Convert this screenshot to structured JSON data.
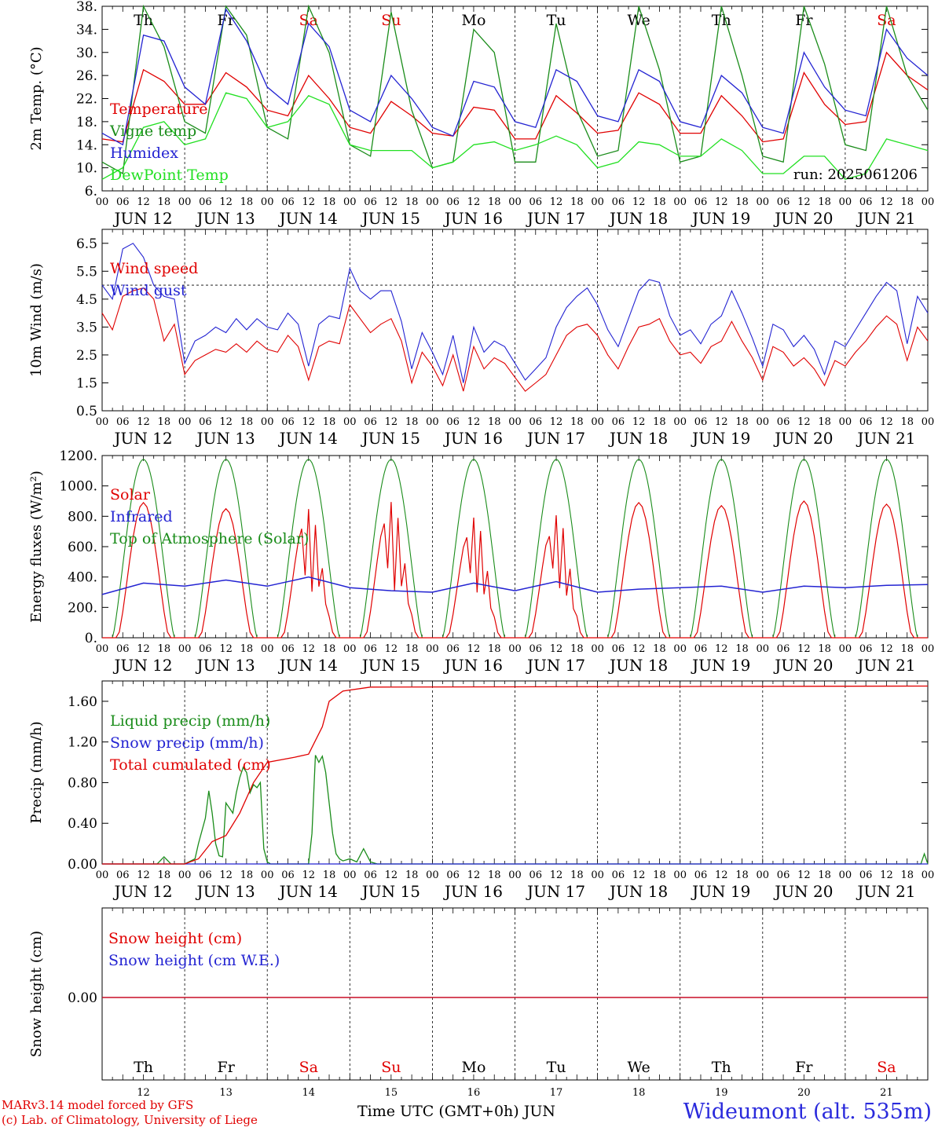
{
  "chart_data": [
    {
      "id": "temp",
      "type": "line",
      "ylabel": "2m Temp. (°C)",
      "ylim": [
        6,
        38
      ],
      "yticks": [
        6,
        10,
        14,
        18,
        22,
        26,
        30,
        34,
        38
      ],
      "ytick_labels": [
        "6.",
        "10.",
        "14.",
        "18.",
        "22.",
        "26.",
        "30.",
        "34.",
        "38."
      ],
      "day_labels_top": [
        "Th",
        "Fr",
        "Sa",
        "Su",
        "Mo",
        "Tu",
        "We",
        "Th",
        "Fr",
        "Sa"
      ],
      "annotation": "run: 2025061206",
      "series": [
        {
          "name": "Temperature",
          "color": "#e00000",
          "x": [
            0,
            6,
            12,
            18,
            24,
            30,
            36,
            42,
            48,
            54,
            60,
            66,
            72,
            78,
            84,
            90,
            96,
            102,
            108,
            114,
            120,
            126,
            132,
            138,
            144,
            150,
            156,
            162,
            168,
            174,
            180,
            186,
            192,
            198,
            204,
            210,
            216,
            222,
            228,
            234,
            240
          ],
          "y": [
            15,
            14.5,
            27,
            25,
            21,
            21,
            26.5,
            24,
            20,
            19,
            26,
            22,
            17,
            16,
            21.5,
            19,
            16,
            15.5,
            20.5,
            20,
            15,
            15,
            22.5,
            19.5,
            16,
            16.5,
            23,
            21,
            16,
            16,
            22.5,
            19,
            14.5,
            15,
            26.5,
            21,
            17.5,
            18,
            30,
            26,
            23.5
          ]
        },
        {
          "name": "Vigne temp",
          "color": "#1a8c1a",
          "x": [
            0,
            6,
            12,
            18,
            24,
            30,
            36,
            42,
            48,
            54,
            60,
            66,
            72,
            78,
            84,
            90,
            96,
            102,
            108,
            114,
            120,
            126,
            132,
            138,
            144,
            150,
            156,
            162,
            168,
            174,
            180,
            186,
            192,
            198,
            204,
            210,
            216,
            222,
            228,
            234,
            240
          ],
          "y": [
            11,
            9,
            38,
            31,
            18,
            16,
            38,
            33,
            17,
            15,
            38,
            30,
            14,
            12,
            37,
            20,
            10,
            11,
            34,
            30,
            11,
            11,
            35,
            20,
            12,
            13,
            38,
            27,
            11,
            12,
            38,
            26,
            12,
            11,
            38,
            28,
            14,
            13,
            38,
            26,
            20
          ]
        },
        {
          "name": "Humidex",
          "color": "#2323d2",
          "x": [
            0,
            6,
            12,
            18,
            24,
            30,
            36,
            42,
            48,
            54,
            60,
            66,
            72,
            78,
            84,
            90,
            96,
            102,
            108,
            114,
            120,
            126,
            132,
            138,
            144,
            150,
            156,
            162,
            168,
            174,
            180,
            186,
            192,
            198,
            204,
            210,
            216,
            222,
            228,
            234,
            240
          ],
          "y": [
            16,
            14,
            33,
            32,
            24,
            21,
            37.5,
            32,
            24,
            21,
            35,
            31,
            20,
            18,
            26,
            22,
            17,
            15.5,
            25,
            24,
            18,
            17,
            27,
            25,
            19,
            18,
            27,
            25,
            18,
            17,
            26,
            23,
            17,
            16,
            30,
            24,
            20,
            19,
            34,
            29,
            26
          ]
        },
        {
          "name": "DewPoint Temp",
          "color": "#22e022",
          "x": [
            0,
            6,
            12,
            18,
            24,
            30,
            36,
            42,
            48,
            54,
            60,
            66,
            72,
            78,
            84,
            90,
            96,
            102,
            108,
            114,
            120,
            126,
            132,
            138,
            144,
            150,
            156,
            162,
            168,
            174,
            180,
            186,
            192,
            198,
            204,
            210,
            216,
            222,
            228,
            234,
            240
          ],
          "y": [
            8,
            10,
            17,
            18,
            14,
            15,
            23,
            22,
            17,
            18,
            22.5,
            21,
            14,
            13,
            13,
            13,
            10,
            11,
            14,
            14.5,
            13,
            14,
            15.5,
            14,
            10,
            11,
            14.5,
            14,
            12,
            12,
            15,
            13,
            9,
            9,
            12,
            12,
            8,
            9,
            15,
            14,
            13
          ]
        }
      ]
    },
    {
      "id": "wind",
      "type": "line",
      "ylabel": "10m Wind (m/s)",
      "ylim": [
        0.5,
        7
      ],
      "yticks": [
        0.5,
        1.5,
        2.5,
        3.5,
        4.5,
        5.5,
        6.5
      ],
      "ytick_labels": [
        "0.5",
        "1.5",
        "2.5",
        "3.5",
        "4.5",
        "5.5",
        "6.5"
      ],
      "reference_line": 5.0,
      "series": [
        {
          "name": "Wind speed",
          "color": "#e00000",
          "x": [
            0,
            3,
            6,
            9,
            12,
            15,
            18,
            21,
            24,
            27,
            30,
            33,
            36,
            39,
            42,
            45,
            48,
            51,
            54,
            57,
            60,
            63,
            66,
            69,
            72,
            75,
            78,
            81,
            84,
            87,
            90,
            93,
            96,
            99,
            102,
            105,
            108,
            111,
            114,
            117,
            120,
            123,
            126,
            129,
            132,
            135,
            138,
            141,
            144,
            147,
            150,
            153,
            156,
            159,
            162,
            165,
            168,
            171,
            174,
            177,
            180,
            183,
            186,
            189,
            192,
            195,
            198,
            201,
            204,
            207,
            210,
            213,
            216,
            219,
            222,
            225,
            228,
            231,
            234,
            237,
            240
          ],
          "y": [
            4,
            3.4,
            4.6,
            4.8,
            4.9,
            4.5,
            3,
            3.6,
            1.8,
            2.3,
            2.5,
            2.7,
            2.6,
            2.9,
            2.6,
            3,
            2.7,
            2.6,
            3.2,
            2.8,
            1.6,
            2.8,
            3,
            2.9,
            4.3,
            3.8,
            3.3,
            3.6,
            3.8,
            3,
            1.5,
            2.6,
            2.1,
            1.4,
            2.5,
            1.2,
            2.8,
            2,
            2.4,
            2.2,
            1.7,
            1.2,
            1.5,
            1.8,
            2.5,
            3.2,
            3.5,
            3.6,
            3.2,
            2.5,
            2,
            2.8,
            3.5,
            3.6,
            3.8,
            3,
            2.5,
            2.6,
            2.2,
            2.8,
            3,
            3.7,
            3,
            2.4,
            1.6,
            2.8,
            2.6,
            2.1,
            2.4,
            2,
            1.4,
            2.3,
            2.1,
            2.6,
            3,
            3.5,
            3.9,
            3.6,
            2.3,
            3.5,
            3
          ]
        },
        {
          "name": "Wind gust",
          "color": "#2323d2",
          "x": [
            0,
            3,
            6,
            9,
            12,
            15,
            18,
            21,
            24,
            27,
            30,
            33,
            36,
            39,
            42,
            45,
            48,
            51,
            54,
            57,
            60,
            63,
            66,
            69,
            72,
            75,
            78,
            81,
            84,
            87,
            90,
            93,
            96,
            99,
            102,
            105,
            108,
            111,
            114,
            117,
            120,
            123,
            126,
            129,
            132,
            135,
            138,
            141,
            144,
            147,
            150,
            153,
            156,
            159,
            162,
            165,
            168,
            171,
            174,
            177,
            180,
            183,
            186,
            189,
            192,
            195,
            198,
            201,
            204,
            207,
            210,
            213,
            216,
            219,
            222,
            225,
            228,
            231,
            234,
            237,
            240
          ],
          "y": [
            5,
            4.5,
            6.3,
            6.5,
            6,
            5,
            4.6,
            4.5,
            2.2,
            3,
            3.2,
            3.5,
            3.3,
            3.8,
            3.4,
            3.8,
            3.5,
            3.4,
            4,
            3.6,
            2.1,
            3.6,
            3.9,
            3.8,
            5.6,
            4.8,
            4.5,
            4.8,
            4.8,
            3.7,
            2,
            3.3,
            2.6,
            1.8,
            3.2,
            1.5,
            3.5,
            2.6,
            3,
            2.8,
            2.2,
            1.6,
            2,
            2.4,
            3.5,
            4.2,
            4.6,
            4.9,
            4.3,
            3.4,
            2.8,
            3.8,
            4.8,
            5.2,
            5.1,
            3.9,
            3.2,
            3.4,
            2.9,
            3.6,
            3.9,
            4.8,
            4,
            3.1,
            2.1,
            3.6,
            3.4,
            2.8,
            3.2,
            2.7,
            1.8,
            3,
            2.8,
            3.4,
            4,
            4.6,
            5.1,
            4.8,
            2.9,
            4.6,
            4
          ]
        }
      ]
    },
    {
      "id": "energy",
      "type": "line",
      "ylabel": "Energy fluxes (W/m²)",
      "ylim": [
        0,
        1200
      ],
      "yticks": [
        0,
        200,
        400,
        600,
        800,
        1000,
        1200
      ],
      "ytick_labels": [
        "0.",
        "200.",
        "400.",
        "600.",
        "800.",
        "1000.",
        "1200."
      ],
      "series": [
        {
          "name": "Solar",
          "color": "#e00000",
          "days_peak": [
            890,
            850,
            850,
            900,
            800,
            820,
            890,
            870,
            900,
            880
          ],
          "irregular_days": [
            2,
            3,
            4,
            5
          ]
        },
        {
          "name": "Infrared",
          "color": "#2323d2",
          "x": [
            0,
            12,
            24,
            36,
            48,
            60,
            72,
            84,
            96,
            108,
            120,
            132,
            144,
            156,
            168,
            180,
            192,
            204,
            216,
            228,
            240
          ],
          "y": [
            285,
            360,
            340,
            380,
            340,
            400,
            330,
            310,
            300,
            360,
            310,
            370,
            300,
            320,
            330,
            340,
            300,
            340,
            330,
            345,
            350
          ]
        },
        {
          "name": "Top of Atmosphere (Solar)",
          "color": "#1a8c1a",
          "peak": 1175
        }
      ]
    },
    {
      "id": "precip",
      "type": "line",
      "ylabel": "Precip (mm/h)",
      "ylim": [
        0,
        1.8
      ],
      "yticks": [
        0,
        0.4,
        0.8,
        1.2,
        1.6
      ],
      "ytick_labels": [
        "0.00",
        "0.40",
        "0.80",
        "1.20",
        "1.60"
      ],
      "series": [
        {
          "name": "Liquid precip (mm/h)",
          "color": "#1a8c1a",
          "x": [
            0,
            16,
            18,
            20,
            24,
            27,
            28,
            30,
            31,
            32,
            33,
            34,
            35,
            36,
            38,
            39,
            40,
            41,
            42,
            43,
            44,
            45,
            46,
            47,
            48,
            49,
            50,
            60,
            61,
            62,
            63,
            64,
            65,
            66,
            67,
            68,
            69,
            70,
            72,
            74,
            76,
            78,
            80,
            84,
            238,
            239,
            240
          ],
          "y": [
            0,
            0,
            0.07,
            0,
            0,
            0.05,
            0.2,
            0.45,
            0.72,
            0.5,
            0.2,
            0.08,
            0.07,
            0.6,
            0.5,
            0.7,
            0.85,
            0.95,
            0.9,
            0.7,
            0.78,
            0.75,
            0.8,
            0.15,
            0.02,
            0,
            0,
            0,
            0.3,
            1.07,
            1.0,
            1.06,
            0.9,
            0.6,
            0.3,
            0.1,
            0.05,
            0.03,
            0.05,
            0.02,
            0.15,
            0.02,
            0,
            0,
            0,
            0.1,
            0
          ]
        },
        {
          "name": "Snow precip (mm/h)",
          "color": "#2323d2",
          "x": [
            0,
            240
          ],
          "y": [
            0,
            0
          ]
        },
        {
          "name": "Total cumulated (cm)",
          "color": "#e00000",
          "x": [
            0,
            24,
            28,
            32,
            36,
            40,
            44,
            48,
            56,
            60,
            64,
            66,
            70,
            78,
            240
          ],
          "y": [
            0,
            0,
            0.05,
            0.22,
            0.28,
            0.5,
            0.8,
            1.0,
            1.05,
            1.08,
            1.35,
            1.6,
            1.7,
            1.74,
            1.75
          ]
        }
      ]
    },
    {
      "id": "snow",
      "type": "line",
      "ylabel": "Snow height (cm)",
      "yticks": [
        0
      ],
      "ytick_labels": [
        "0.00"
      ],
      "day_labels_bottom": [
        "Th",
        "Fr",
        "Sa",
        "Su",
        "Mo",
        "Tu",
        "We",
        "Th",
        "Fr",
        "Sa"
      ],
      "date_numbers": [
        "12",
        "13",
        "14",
        "15",
        "16",
        "17",
        "18",
        "19",
        "20",
        "21"
      ],
      "series": [
        {
          "name": "Snow height (cm)",
          "color": "#e00000",
          "x": [
            0,
            240
          ],
          "y": [
            0,
            0
          ]
        },
        {
          "name": "Snow height (cm W.E.)",
          "color": "#2323d2",
          "x": [
            0,
            240
          ],
          "y": [
            0,
            0
          ]
        }
      ]
    }
  ],
  "x_axis": {
    "hour_labels": [
      "00",
      "06",
      "12",
      "18"
    ],
    "end_label": "00",
    "date_labels": [
      "JUN 12",
      "JUN 13",
      "JUN 14",
      "JUN 15",
      "JUN 16",
      "JUN 17",
      "JUN 18",
      "JUN 19",
      "JUN 20",
      "JUN 21"
    ],
    "weekend_color": "#e00000",
    "weekend_days": [
      2,
      3,
      9
    ]
  },
  "footer": {
    "credit_line1": "MARv3.14 model forced by GFS",
    "credit_line2": "(c) Lab. of Climatology, University of Liege",
    "xtitle": "Time UTC (GMT+0h) JUN",
    "station": "Wideumont (alt. 535m)"
  }
}
